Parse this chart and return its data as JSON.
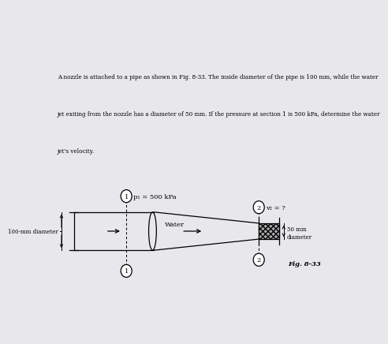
{
  "bg_color": "#e8e8ec",
  "diagram_bg": "#ffffff",
  "text_color": "#000000",
  "para_line1": "A nozzle is attached to a pipe as shown in Fig. 8-33. The inside diameter of the pipe is 100 mm, while the water",
  "para_line2": "jet exiting from the nozzle has a diameter of 50 mm. If the pressure at section 1 is 500 kPa, determine the water",
  "para_line3": "jet's velocity.",
  "label_100mm_line1": "100-mm diameter",
  "label_water": "Water",
  "label_50mm": "50 mm",
  "label_diameter": "diameter",
  "label_p1": "p₁ = 500 kPa",
  "label_v2": "v₂ = ?",
  "label_fig": "Fig. 8-33"
}
